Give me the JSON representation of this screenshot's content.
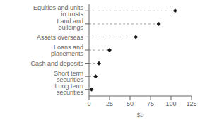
{
  "chart_data": {
    "type": "lollipop",
    "orientation": "horizontal",
    "categories": [
      "Equities and units in trusts",
      "Land and buildings",
      "Assets overseas",
      "Loans and placements",
      "Cash and deposits",
      "Short term securities",
      "Long term securities"
    ],
    "values": [
      105,
      85,
      57,
      25,
      12,
      8,
      3
    ],
    "color": "#1a1a1a",
    "marker": "diamond",
    "line_style": "dashed",
    "xlabel": "$b",
    "xlim": [
      0,
      125
    ],
    "xticks": [
      0,
      25,
      50,
      75,
      100,
      125
    ]
  }
}
